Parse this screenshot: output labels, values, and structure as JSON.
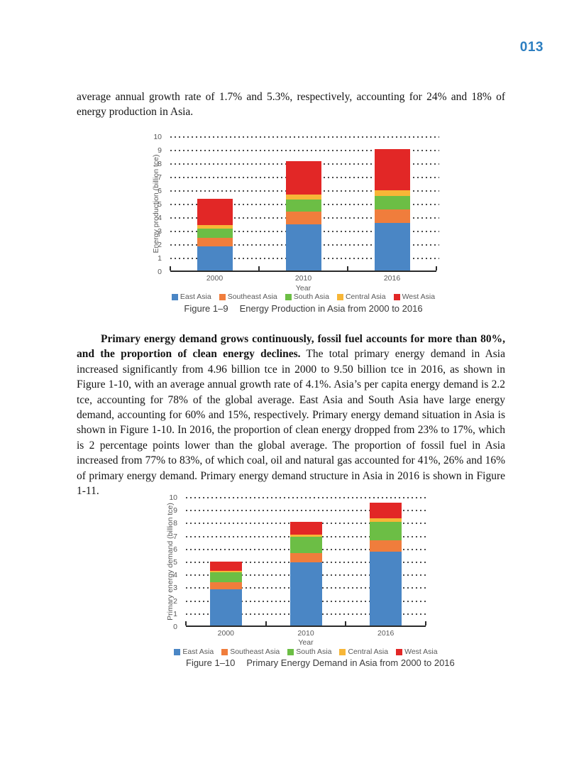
{
  "page": {
    "number": "013"
  },
  "paragraphs": {
    "p1": "average annual growth rate of 1.7% and 5.3%, respectively, accounting for 24% and 18% of energy production in Asia.",
    "p2_bold": "Primary energy demand grows continuously, fossil fuel accounts for more than 80%, and the proportion of clean energy declines.",
    "p2_rest": " The total primary energy demand in Asia increased significantly from 4.96 billion tce in 2000 to 9.50 billion tce in 2016, as shown in Figure 1-10, with an average annual growth rate of 4.1%. Asia’s per capita energy demand is 2.2 tce, accounting for 78% of the global average. East Asia and South Asia have large energy demand, accounting for 60% and 15%, respectively. Primary energy demand situation in Asia is shown in Figure 1-10. In 2016, the proportion of clean energy dropped from 23% to 17%, which is 2 percentage points lower than the global average. The proportion of fossil fuel in Asia increased from 77% to 83%, of which coal, oil and natural gas accounted for 41%, 26% and 16% of primary energy demand. Primary energy demand structure in Asia in 2016 is shown in Figure 1-11."
  },
  "colors": {
    "page_number_blue": "#2d7fc1",
    "east_asia": "#4a86c5",
    "southeast_asia": "#f07d3c",
    "south_asia": "#6cbe45",
    "central_asia": "#f7b637",
    "west_asia": "#e22726",
    "axis_text": "#595959"
  },
  "chart_data": [
    {
      "type": "bar",
      "stacked": true,
      "categories": [
        "2000",
        "2010",
        "2016"
      ],
      "series": [
        {
          "name": "East Asia",
          "color": "#4a86c5",
          "values": [
            1.8,
            3.4,
            3.55
          ]
        },
        {
          "name": "Southeast Asia",
          "color": "#f07d3c",
          "values": [
            0.62,
            0.95,
            1.0
          ]
        },
        {
          "name": "South Asia",
          "color": "#6cbe45",
          "values": [
            0.7,
            0.9,
            1.0
          ]
        },
        {
          "name": "Central Asia",
          "color": "#f7b637",
          "values": [
            0.23,
            0.4,
            0.4
          ]
        },
        {
          "name": "West Asia",
          "color": "#e22726",
          "values": [
            1.95,
            2.45,
            3.05
          ]
        }
      ],
      "totals": [
        5.3,
        8.1,
        9.0
      ],
      "xlabel": "Year",
      "ylabel": "Energy production (billion tce)",
      "ylim": [
        0,
        10
      ],
      "ytick_step": 1,
      "grid": "horizontal-dotted",
      "legend_position": "bottom",
      "caption_label": "Figure 1–9",
      "caption_title": "Energy Production in Asia from 2000 to 2016"
    },
    {
      "type": "bar",
      "stacked": true,
      "categories": [
        "2000",
        "2010",
        "2016"
      ],
      "series": [
        {
          "name": "East Asia",
          "color": "#4a86c5",
          "values": [
            2.8,
            4.9,
            5.7
          ]
        },
        {
          "name": "Southeast Asia",
          "color": "#f07d3c",
          "values": [
            0.55,
            0.73,
            0.9
          ]
        },
        {
          "name": "South Asia",
          "color": "#6cbe45",
          "values": [
            0.75,
            1.25,
            1.45
          ]
        },
        {
          "name": "Central Asia",
          "color": "#f7b637",
          "values": [
            0.11,
            0.17,
            0.25
          ]
        },
        {
          "name": "West Asia",
          "color": "#e22726",
          "values": [
            0.75,
            0.95,
            1.2
          ]
        }
      ],
      "totals": [
        4.96,
        8.0,
        9.5
      ],
      "xlabel": "Year",
      "ylabel": "Primary energy demand (billion tce)",
      "ylim": [
        0,
        10
      ],
      "ytick_step": 1,
      "grid": "horizontal-dotted",
      "legend_position": "bottom",
      "caption_label": "Figure 1–10",
      "caption_title": "Primary Energy Demand in Asia from 2000 to 2016"
    }
  ]
}
